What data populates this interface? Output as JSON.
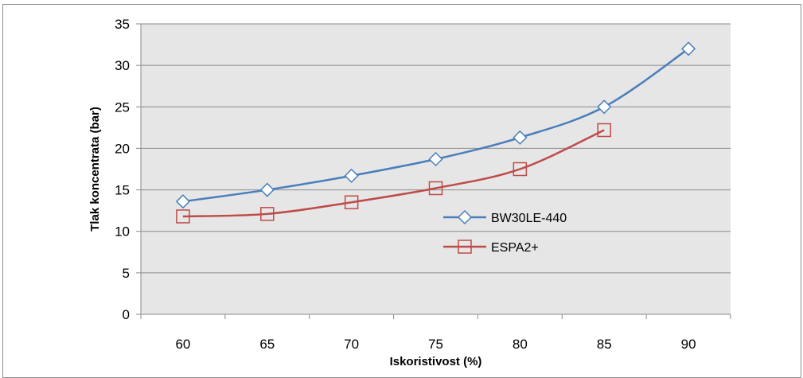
{
  "chart_data": {
    "type": "line",
    "xlabel": "Iskoristivost (%)",
    "ylabel": "Tlak koncentrata (bar)",
    "x": [
      60,
      65,
      70,
      75,
      80,
      85,
      90
    ],
    "ylim": [
      0,
      35
    ],
    "yticks": [
      0,
      5,
      10,
      15,
      20,
      25,
      30,
      35
    ],
    "grid": true,
    "legend_position": "right-center",
    "series": [
      {
        "name": "BW30LE-440",
        "color": "#4a7ebb",
        "marker": "diamond",
        "x": [
          60,
          65,
          70,
          75,
          80,
          85,
          90
        ],
        "values": [
          13.6,
          15.0,
          16.7,
          18.7,
          21.3,
          25.0,
          32.0
        ]
      },
      {
        "name": "ESPA2+",
        "color": "#be4b48",
        "marker": "square",
        "x": [
          60,
          65,
          70,
          75,
          80,
          85
        ],
        "values": [
          11.8,
          12.1,
          13.5,
          15.2,
          17.5,
          22.2
        ]
      }
    ]
  }
}
